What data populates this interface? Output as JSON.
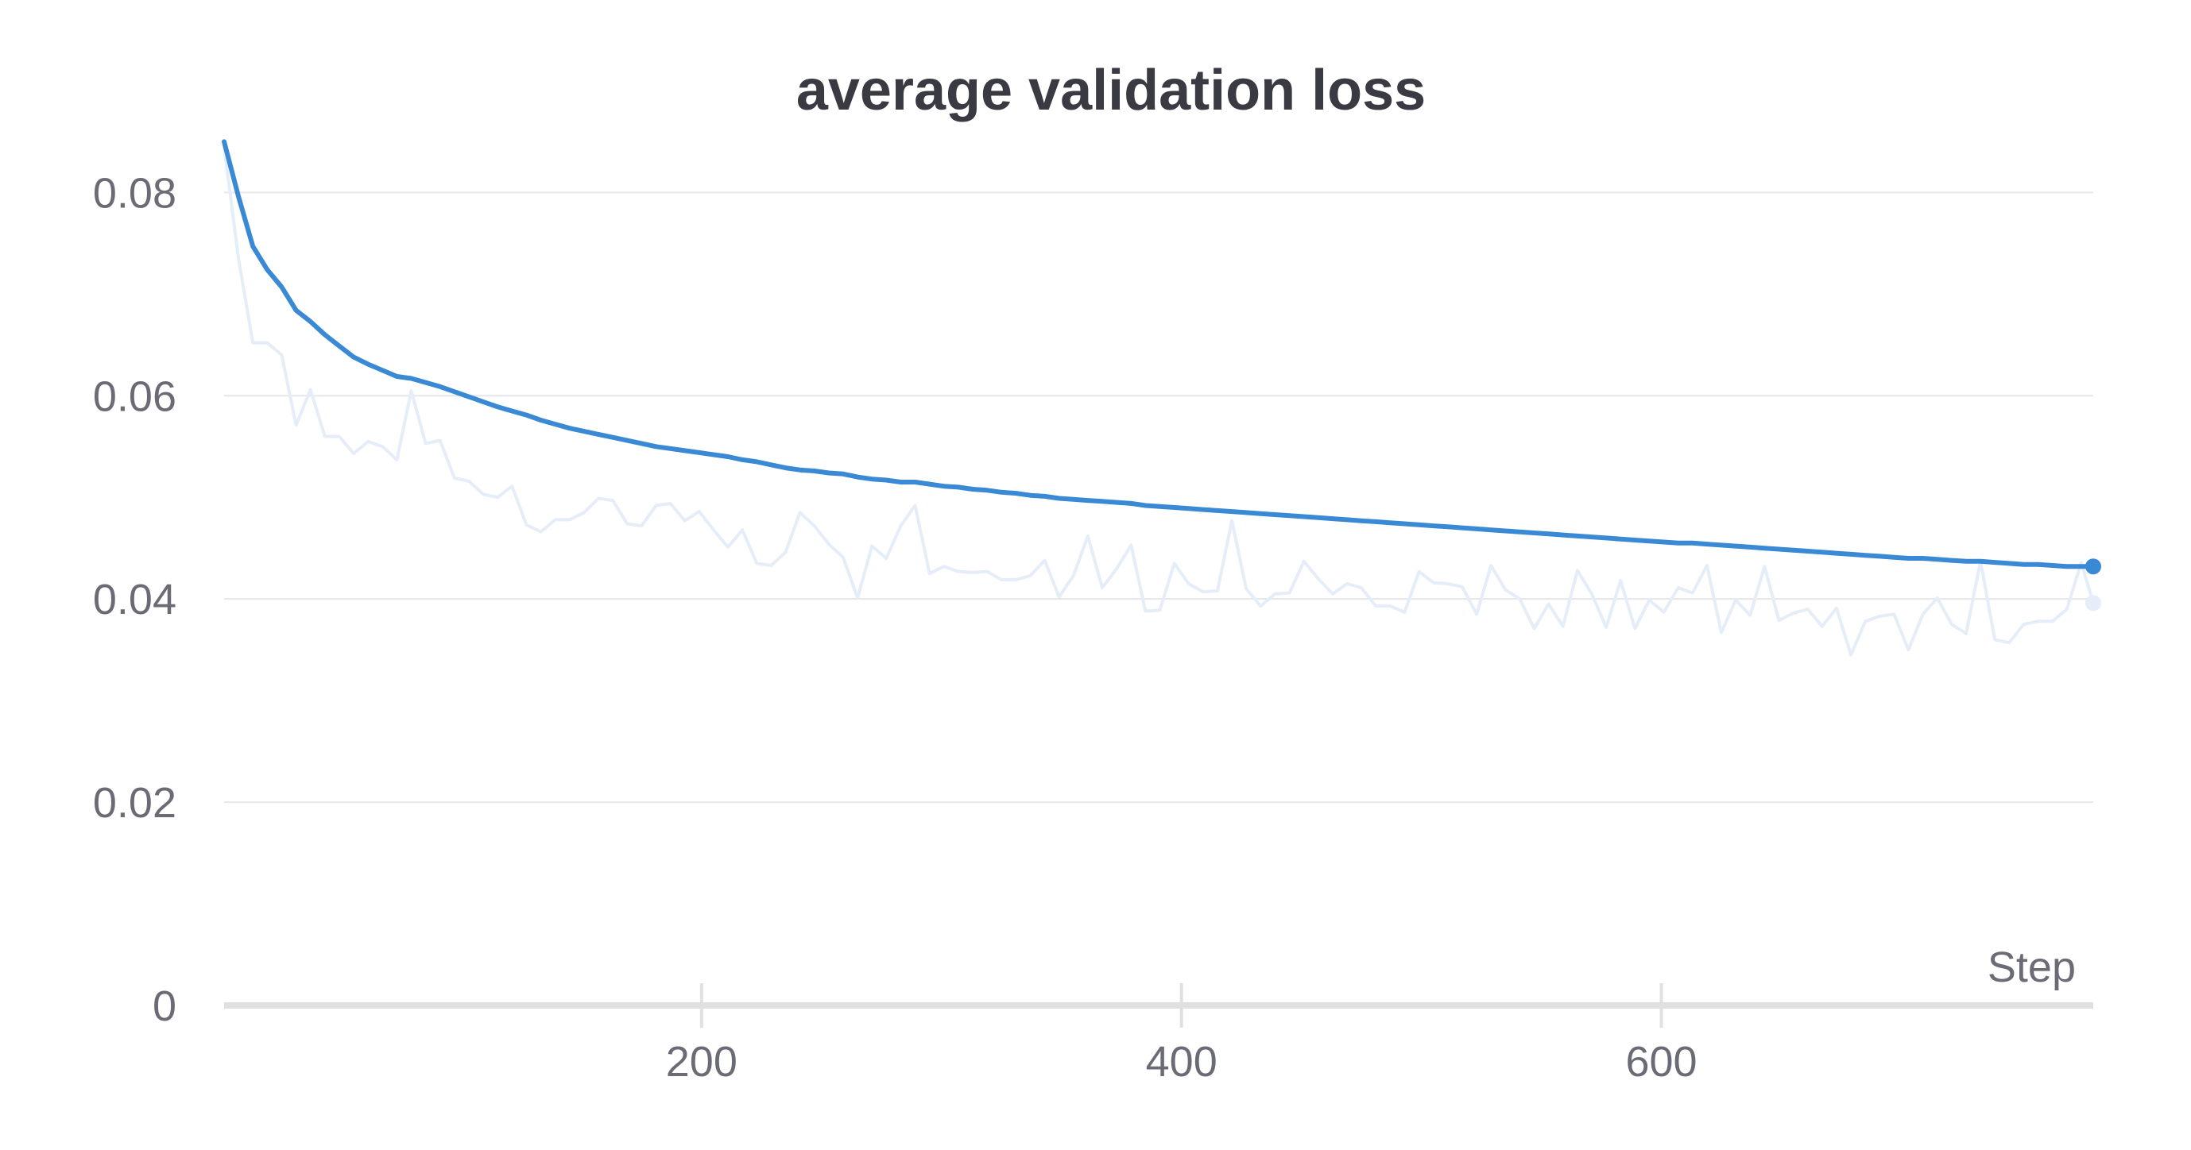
{
  "colors": {
    "accent": "#3a89d4",
    "raw_series": "#e5edf8",
    "grid": "#e6e6ea",
    "axis": "#e0e0e0",
    "text": "#6b6b76",
    "title": "#3a3b42"
  },
  "chart_data": {
    "type": "line",
    "title": "average validation loss",
    "xlabel": "Step",
    "ylabel": "",
    "xlim": [
      1,
      780
    ],
    "ylim": [
      0,
      0.088
    ],
    "x_ticks": [
      200,
      400,
      600
    ],
    "x_tick_labels": [
      "200",
      "400",
      "600"
    ],
    "y_ticks": [
      0,
      0.02,
      0.04,
      0.06,
      0.08
    ],
    "y_tick_labels": [
      "0",
      "0.02",
      "0.04",
      "0.06",
      "0.08"
    ],
    "grid": true,
    "legend": "none",
    "series": [
      {
        "style": "raw",
        "x": [
          1,
          7,
          13,
          19,
          25,
          31,
          37,
          43,
          49,
          55,
          61,
          67,
          73,
          79,
          85,
          91,
          97,
          103,
          109,
          115,
          121,
          127,
          133,
          139,
          145,
          151,
          157,
          163,
          169,
          175,
          181,
          187,
          193,
          199,
          205,
          211,
          217,
          223,
          229,
          235,
          241,
          247,
          253,
          259,
          265,
          271,
          277,
          283,
          289,
          295,
          301,
          307,
          313,
          319,
          325,
          331,
          337,
          343,
          349,
          355,
          361,
          367,
          373,
          379,
          385,
          391,
          397,
          403,
          409,
          415,
          421,
          427,
          433,
          439,
          445,
          451,
          457,
          463,
          469,
          475,
          481,
          487,
          493,
          499,
          505,
          511,
          517,
          523,
          529,
          535,
          541,
          547,
          553,
          559,
          565,
          571,
          577,
          583,
          589,
          595,
          601,
          607,
          613,
          619,
          625,
          631,
          637,
          643,
          649,
          655,
          661,
          667,
          673,
          679,
          685,
          691,
          697,
          703,
          709,
          715,
          721,
          727,
          733,
          739,
          745,
          751,
          757,
          763,
          769,
          775,
          780
        ],
        "y": [
          0.0845,
          0.0735,
          0.0652,
          0.0652,
          0.064,
          0.0571,
          0.0606,
          0.056,
          0.056,
          0.0543,
          0.0555,
          0.055,
          0.0537,
          0.0605,
          0.0553,
          0.0556,
          0.0519,
          0.0516,
          0.0503,
          0.05,
          0.0511,
          0.0473,
          0.0466,
          0.0478,
          0.0478,
          0.0485,
          0.0499,
          0.0497,
          0.0474,
          0.0472,
          0.0492,
          0.0494,
          0.0477,
          0.0486,
          0.0468,
          0.0451,
          0.0468,
          0.0435,
          0.0433,
          0.0446,
          0.0485,
          0.0472,
          0.0454,
          0.0441,
          0.0401,
          0.0452,
          0.044,
          0.0472,
          0.0492,
          0.0425,
          0.0432,
          0.0427,
          0.0426,
          0.0427,
          0.0419,
          0.0419,
          0.0423,
          0.0438,
          0.0402,
          0.0423,
          0.0462,
          0.0411,
          0.043,
          0.0453,
          0.0388,
          0.0389,
          0.0435,
          0.0415,
          0.0407,
          0.0408,
          0.0477,
          0.041,
          0.0393,
          0.0405,
          0.0406,
          0.0437,
          0.042,
          0.0405,
          0.0415,
          0.0411,
          0.0393,
          0.0393,
          0.0387,
          0.0427,
          0.0416,
          0.0415,
          0.0412,
          0.0385,
          0.0433,
          0.0409,
          0.04,
          0.0371,
          0.0395,
          0.0373,
          0.0428,
          0.0405,
          0.0372,
          0.0418,
          0.0371,
          0.0399,
          0.0387,
          0.0411,
          0.0406,
          0.0433,
          0.0367,
          0.0399,
          0.0384,
          0.0432,
          0.0379,
          0.0386,
          0.039,
          0.0373,
          0.0391,
          0.0345,
          0.0378,
          0.0383,
          0.0385,
          0.035,
          0.0385,
          0.0401,
          0.0375,
          0.0366,
          0.0437,
          0.036,
          0.0357,
          0.0375,
          0.0378,
          0.0378,
          0.039,
          0.0436,
          0.0396
        ]
      },
      {
        "style": "smoothed",
        "x": [
          1,
          7,
          13,
          19,
          25,
          31,
          37,
          43,
          49,
          55,
          61,
          67,
          73,
          79,
          85,
          91,
          97,
          103,
          109,
          115,
          121,
          127,
          133,
          139,
          145,
          151,
          157,
          163,
          169,
          175,
          181,
          187,
          193,
          199,
          205,
          211,
          217,
          223,
          229,
          235,
          241,
          247,
          253,
          259,
          265,
          271,
          277,
          283,
          289,
          295,
          301,
          307,
          313,
          319,
          325,
          331,
          337,
          343,
          349,
          355,
          361,
          367,
          373,
          379,
          385,
          391,
          397,
          403,
          409,
          415,
          421,
          427,
          433,
          439,
          445,
          451,
          457,
          463,
          469,
          475,
          481,
          487,
          493,
          499,
          505,
          511,
          517,
          523,
          529,
          535,
          541,
          547,
          553,
          559,
          565,
          571,
          577,
          583,
          589,
          595,
          601,
          607,
          613,
          619,
          625,
          631,
          637,
          643,
          649,
          655,
          661,
          667,
          673,
          679,
          685,
          691,
          697,
          703,
          709,
          715,
          721,
          727,
          733,
          739,
          745,
          751,
          757,
          763,
          769,
          775,
          780
        ],
        "y": [
          0.085,
          0.0796,
          0.0747,
          0.0724,
          0.0707,
          0.0684,
          0.0673,
          0.066,
          0.0649,
          0.0638,
          0.0631,
          0.0625,
          0.0619,
          0.0617,
          0.0613,
          0.0609,
          0.0604,
          0.0599,
          0.0594,
          0.0589,
          0.0585,
          0.0581,
          0.0576,
          0.0572,
          0.0568,
          0.0565,
          0.0562,
          0.0559,
          0.0556,
          0.0553,
          0.055,
          0.0548,
          0.0546,
          0.0544,
          0.0542,
          0.054,
          0.0537,
          0.0535,
          0.0532,
          0.0529,
          0.0527,
          0.0526,
          0.0524,
          0.0523,
          0.052,
          0.0518,
          0.0517,
          0.0515,
          0.0515,
          0.0513,
          0.0511,
          0.051,
          0.0508,
          0.0507,
          0.0505,
          0.0504,
          0.0502,
          0.0501,
          0.0499,
          0.0498,
          0.0497,
          0.0496,
          0.0495,
          0.0494,
          0.0492,
          0.0491,
          0.049,
          0.0489,
          0.0488,
          0.0487,
          0.0486,
          0.0485,
          0.0484,
          0.0483,
          0.0482,
          0.0481,
          0.048,
          0.0479,
          0.0478,
          0.0477,
          0.0476,
          0.0475,
          0.0474,
          0.0473,
          0.0472,
          0.0471,
          0.047,
          0.0469,
          0.0468,
          0.0467,
          0.0466,
          0.0465,
          0.0464,
          0.0463,
          0.0462,
          0.0461,
          0.046,
          0.0459,
          0.0458,
          0.0457,
          0.0456,
          0.0455,
          0.0455,
          0.0454,
          0.0453,
          0.0452,
          0.0451,
          0.045,
          0.0449,
          0.0448,
          0.0447,
          0.0446,
          0.0445,
          0.0444,
          0.0443,
          0.0442,
          0.0441,
          0.044,
          0.044,
          0.0439,
          0.0438,
          0.0437,
          0.0437,
          0.0436,
          0.0435,
          0.0434,
          0.0434,
          0.0433,
          0.0432,
          0.0432,
          0.0432
        ]
      }
    ]
  }
}
